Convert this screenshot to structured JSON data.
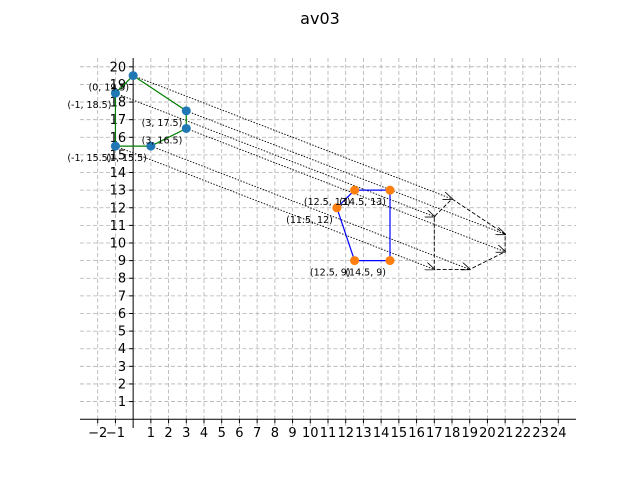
{
  "chart_data": {
    "type": "scatter",
    "title": "av03",
    "xlabel": "",
    "ylabel": "",
    "xlim": [
      -3,
      25
    ],
    "ylim": [
      -0.5,
      20.5
    ],
    "grid": true,
    "x_ticks": [
      -2,
      -1,
      1,
      2,
      3,
      4,
      5,
      6,
      7,
      8,
      9,
      10,
      11,
      12,
      13,
      14,
      15,
      16,
      17,
      18,
      19,
      20,
      21,
      22,
      23,
      24
    ],
    "y_ticks": [
      1,
      2,
      3,
      4,
      5,
      6,
      7,
      8,
      9,
      10,
      11,
      12,
      13,
      14,
      15,
      16,
      17,
      18,
      19,
      20
    ],
    "series": [
      {
        "color": "#1f77b4",
        "line_color": "#008000",
        "closed": true,
        "points": [
          {
            "x": 0,
            "y": 19.5,
            "label": "(0, 19.5)"
          },
          {
            "x": 3,
            "y": 17.5,
            "label": "(3, 17.5)"
          },
          {
            "x": 3,
            "y": 16.5,
            "label": "(3, 16.5)"
          },
          {
            "x": 1,
            "y": 15.5,
            "label": "(1, 15.5)"
          },
          {
            "x": -1,
            "y": 15.5,
            "label": "(-1, 15.5)"
          },
          {
            "x": -1,
            "y": 18.5,
            "label": "(-1, 18.5)"
          }
        ]
      },
      {
        "color": "#ff7f0e",
        "line_color": "#0000ff",
        "closed": true,
        "points": [
          {
            "x": 12.5,
            "y": 13,
            "label": "(12.5, 13)"
          },
          {
            "x": 14.5,
            "y": 13,
            "label": "(14.5, 13)"
          },
          {
            "x": 14.5,
            "y": 9,
            "label": "(14.5, 9)"
          },
          {
            "x": 12.5,
            "y": 9,
            "label": "(12.5, 9)"
          },
          {
            "x": 11.5,
            "y": 12,
            "label": "(11.5, 12)"
          }
        ]
      }
    ],
    "projection_arrows": [
      {
        "from": [
          0,
          19.5
        ],
        "to": [
          18,
          12.5
        ]
      },
      {
        "from": [
          -1,
          18.5
        ],
        "to": [
          17,
          11.5
        ]
      },
      {
        "from": [
          3,
          17.5
        ],
        "to": [
          21,
          10.5
        ]
      },
      {
        "from": [
          3,
          16.5
        ],
        "to": [
          21,
          9.5
        ]
      },
      {
        "from": [
          -1,
          15.5
        ],
        "to": [
          17,
          8.5
        ]
      },
      {
        "from": [
          1,
          15.5
        ],
        "to": [
          19,
          8.5
        ]
      }
    ],
    "projected_shape": [
      [
        18,
        12.5
      ],
      [
        21,
        10.5
      ],
      [
        21,
        9.5
      ],
      [
        19,
        8.5
      ],
      [
        17,
        8.5
      ],
      [
        17,
        11.5
      ]
    ]
  }
}
